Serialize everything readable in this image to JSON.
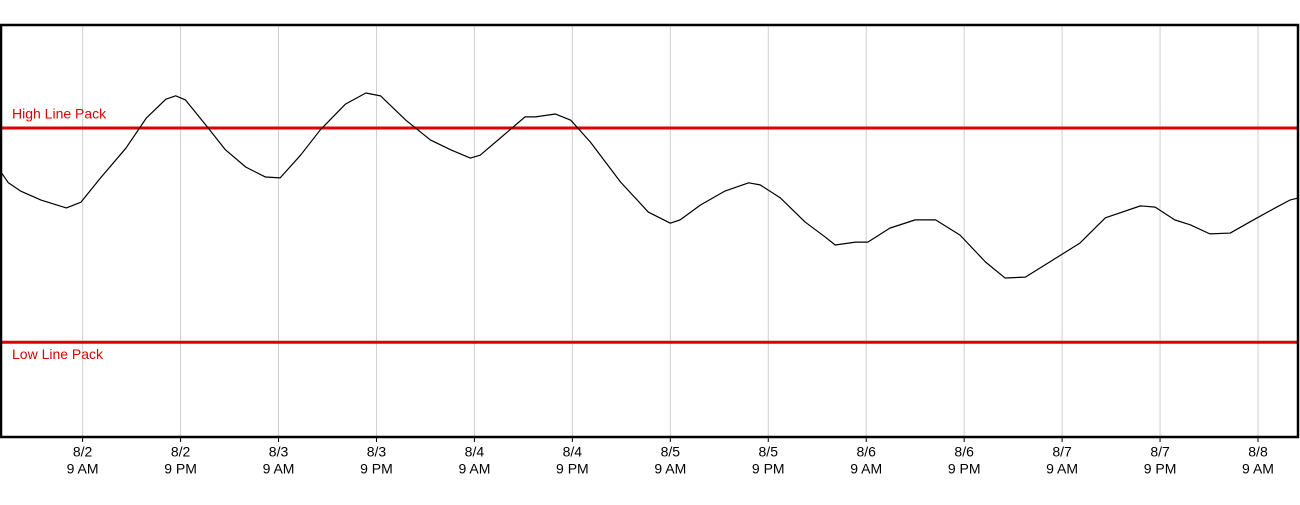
{
  "chart_data": {
    "type": "line",
    "x": [
      -10.0,
      -9.1,
      -7.6,
      -5.1,
      -2.0,
      -0.2,
      2.2,
      5.3,
      7.8,
      10.2,
      11.4,
      12.6,
      15.1,
      17.5,
      20.0,
      22.4,
      24.2,
      26.7,
      29.1,
      32.2,
      34.7,
      36.5,
      39.6,
      42.6,
      45.1,
      47.5,
      48.7,
      51.2,
      54.2,
      55.5,
      57.9,
      59.8,
      62.2,
      65.9,
      69.3,
      72.0,
      73.2,
      75.7,
      78.7,
      81.6,
      83.0,
      85.5,
      88.5,
      91.0,
      92.2,
      94.7,
      96.2,
      98.9,
      102.0,
      104.5,
      107.5,
      110.6,
      113.0,
      115.5,
      118.5,
      122.2,
      125.3,
      129.6,
      131.4,
      133.8,
      135.7,
      138.1,
      140.6,
      143.0,
      146.1,
      147.9,
      148.9
    ],
    "series": [
      {
        "color": "#000000",
        "values": [
          64.3,
          61.7,
          59.7,
          57.5,
          55.6,
          57.0,
          62.9,
          70.1,
          77.4,
          82.0,
          82.8,
          81.8,
          75.7,
          69.7,
          65.5,
          63.1,
          62.9,
          68.4,
          74.5,
          80.8,
          83.5,
          82.8,
          76.9,
          72.1,
          69.7,
          67.7,
          68.4,
          72.6,
          77.7,
          77.7,
          78.4,
          76.9,
          71.6,
          61.9,
          54.6,
          51.9,
          52.7,
          56.3,
          59.7,
          61.7,
          61.2,
          58.0,
          52.2,
          48.5,
          46.6,
          47.3,
          47.3,
          50.7,
          52.7,
          52.7,
          49.0,
          42.5,
          38.6,
          38.8,
          42.5,
          47.1,
          53.2,
          56.1,
          55.8,
          52.7,
          51.5,
          49.3,
          49.5,
          52.2,
          55.6,
          57.5,
          58.0
        ]
      }
    ],
    "xlim": [
      -10.0,
      148.9
    ],
    "xticks": [
      {
        "value": 0,
        "label": [
          "8/2",
          "9 AM"
        ]
      },
      {
        "value": 12,
        "label": [
          "8/2",
          "9 PM"
        ]
      },
      {
        "value": 24,
        "label": [
          "8/3",
          "9 AM"
        ]
      },
      {
        "value": 36,
        "label": [
          "8/3",
          "9 PM"
        ]
      },
      {
        "value": 48,
        "label": [
          "8/4",
          "9 AM"
        ]
      },
      {
        "value": 60,
        "label": [
          "8/4",
          "9 PM"
        ]
      },
      {
        "value": 72,
        "label": [
          "8/5",
          "9 AM"
        ]
      },
      {
        "value": 84,
        "label": [
          "8/5",
          "9 PM"
        ]
      },
      {
        "value": 96,
        "label": [
          "8/6",
          "9 AM"
        ]
      },
      {
        "value": 108,
        "label": [
          "8/6",
          "9 PM"
        ]
      },
      {
        "value": 120,
        "label": [
          "8/7",
          "9 AM"
        ]
      },
      {
        "value": 132,
        "label": [
          "8/7",
          "9 PM"
        ]
      },
      {
        "value": 144,
        "label": [
          "8/8",
          "9 AM"
        ]
      }
    ],
    "ylim": [
      0,
      100
    ],
    "grid": true,
    "reference_lines": [
      {
        "label": "High Line Pack",
        "value": 75,
        "color": "#e00000",
        "label_position": "above"
      },
      {
        "label": "Low Line Pack",
        "value": 23,
        "color": "#e00000",
        "label_position": "below"
      }
    ]
  }
}
